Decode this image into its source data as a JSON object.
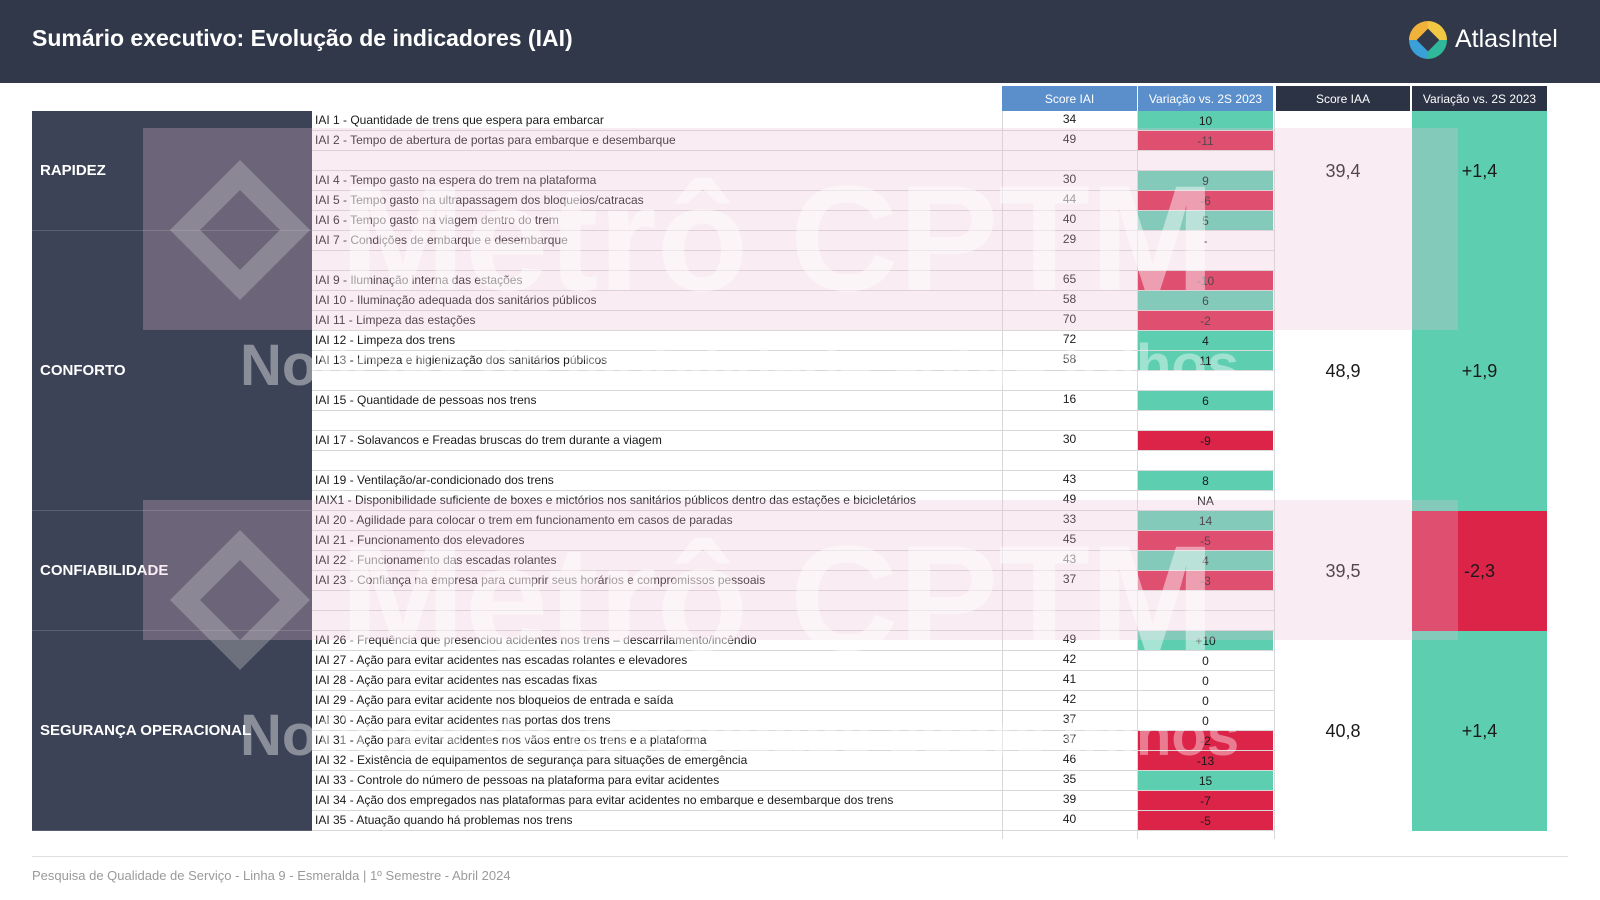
{
  "header": {
    "title": "Sumário executivo: Evolução de indicadores (IAI)",
    "logo_text": "AtlasIntel"
  },
  "columns": {
    "score_iai": "Score IAI",
    "var_iai": "Variação vs. 2S 2023",
    "score_iaa": "Score IAA",
    "var_iaa": "Variação vs. 2S 2023"
  },
  "categories": [
    {
      "name": "RAPIDEZ",
      "score_iaa": "39,4",
      "var_iaa": "+1,4",
      "var_color": "#5dcfb0"
    },
    {
      "name": "CONFORTO",
      "score_iaa": "48,9",
      "var_iaa": "+1,9",
      "var_color": "#5dcfb0"
    },
    {
      "name": "CONFIABILIDADE",
      "score_iaa": "39,5",
      "var_iaa": "-2,3",
      "var_color": "#dc2449"
    },
    {
      "name": "SEGURANÇA OPERACIONAL",
      "score_iaa": "40,8",
      "var_iaa": "+1,4",
      "var_color": "#5dcfb0"
    }
  ],
  "rows": [
    {
      "label": "IAI 1 - Quantidade de trens que espera para embarcar",
      "score": "34",
      "var": "10",
      "tone": "pos"
    },
    {
      "label": "IAI 2 - Tempo de abertura de portas para embarque e desembarque",
      "score": "49",
      "var": "-11",
      "tone": "neg"
    },
    {
      "label": "",
      "score": "",
      "var": "",
      "tone": "none"
    },
    {
      "label": "IAI 4 - Tempo gasto na espera do trem na plataforma",
      "score": "30",
      "var": "9",
      "tone": "pos"
    },
    {
      "label": "IAI 5 - Tempo gasto na ultrapassagem dos bloqueios/catracas",
      "score": "44",
      "var": "-6",
      "tone": "neg"
    },
    {
      "label": "IAI 6 - Tempo gasto na viagem dentro do trem",
      "score": "40",
      "var": "5",
      "tone": "pos"
    },
    {
      "label": "IAI 7 - Condições de embarque e desembarque",
      "score": "29",
      "var": "-",
      "tone": "none"
    },
    {
      "label": "",
      "score": "",
      "var": "",
      "tone": "none"
    },
    {
      "label": "IAI 9 - Iluminação interna das estações",
      "score": "65",
      "var": "-10",
      "tone": "neg"
    },
    {
      "label": "IAI 10 - Iluminação adequada dos sanitários públicos",
      "score": "58",
      "var": "6",
      "tone": "pos"
    },
    {
      "label": "IAI 11 - Limpeza das estações",
      "score": "70",
      "var": "-2",
      "tone": "neg"
    },
    {
      "label": "IAI 12 - Limpeza dos trens",
      "score": "72",
      "var": "4",
      "tone": "pos"
    },
    {
      "label": "IAI 13 - Limpeza e higienização dos sanitários públicos",
      "score": "58",
      "var": "11",
      "tone": "pos"
    },
    {
      "label": "",
      "score": "",
      "var": "",
      "tone": "none"
    },
    {
      "label": "IAI 15 - Quantidade de pessoas nos trens",
      "score": "16",
      "var": "6",
      "tone": "pos"
    },
    {
      "label": "",
      "score": "",
      "var": "",
      "tone": "none"
    },
    {
      "label": "IAI 17 - Solavancos e Freadas bruscas do trem durante a viagem",
      "score": "30",
      "var": "-9",
      "tone": "neg"
    },
    {
      "label": "",
      "score": "",
      "var": "",
      "tone": "none"
    },
    {
      "label": "IAI 19 - Ventilação/ar-condicionado dos trens",
      "score": "43",
      "var": "8",
      "tone": "pos"
    },
    {
      "label": "IAIX1 - Disponibilidade suficiente de boxes e mictórios nos sanitários públicos dentro das estações e bicicletários",
      "score": "49",
      "var": "NA",
      "tone": "none"
    },
    {
      "label": "IAI 20 - Agilidade para colocar o trem em funcionamento em casos de paradas",
      "score": "33",
      "var": "14",
      "tone": "pos"
    },
    {
      "label": "IAI 21 - Funcionamento dos elevadores",
      "score": "45",
      "var": "-5",
      "tone": "neg"
    },
    {
      "label": "IAI 22 - Funcionamento das escadas rolantes",
      "score": "43",
      "var": "4",
      "tone": "pos"
    },
    {
      "label": "IAI 23 - Confiança na empresa para cumprir seus horários e compromissos pessoais",
      "score": "37",
      "var": "-3",
      "tone": "neg"
    },
    {
      "label": "",
      "score": "",
      "var": "",
      "tone": "none"
    },
    {
      "label": "",
      "score": "",
      "var": "",
      "tone": "none"
    },
    {
      "label": "IAI 26 - Frequência que presenciou acidentes nos trens – descarrilamento/incêndio",
      "score": "49",
      "var": "+10",
      "tone": "pos"
    },
    {
      "label": "IAI 27 - Ação para evitar acidentes nas escadas rolantes e elevadores",
      "score": "42",
      "var": "0",
      "tone": "none"
    },
    {
      "label": "IAI 28 - Ação para evitar acidentes nas escadas fixas",
      "score": "41",
      "var": "0",
      "tone": "none"
    },
    {
      "label": "IAI 29 - Ação para evitar acidente nos bloqueios de entrada e saída",
      "score": "42",
      "var": "0",
      "tone": "none"
    },
    {
      "label": "IAI 30 - Ação para evitar acidentes nas portas dos trens",
      "score": "37",
      "var": "0",
      "tone": "none"
    },
    {
      "label": "IAI 31 - Ação para evitar acidentes nos vãos entre os trens e a plataforma",
      "score": "37",
      "var": "-2",
      "tone": "neg"
    },
    {
      "label": "IAI 32 - Existência de equipamentos de segurança para situações de emergência",
      "score": "46",
      "var": "-13",
      "tone": "neg"
    },
    {
      "label": "IAI 33 - Controle do número de pessoas na plataforma para evitar acidentes",
      "score": "35",
      "var": "15",
      "tone": "pos"
    },
    {
      "label": "IAI 34 - Ação dos empregados nas plataformas para evitar acidentes no embarque e desembarque dos trens",
      "score": "39",
      "var": "-7",
      "tone": "neg"
    },
    {
      "label": "IAI 35 - Atuação quando há problemas nos trens",
      "score": "40",
      "var": "-5",
      "tone": "neg"
    }
  ],
  "watermark": {
    "title": "Metrô CPTM",
    "subtitle": "Notícias de mobilidade sobre trilhos"
  },
  "colors": {
    "positive": "#5dcfb0",
    "negative": "#dc2449",
    "header_bg": "#303849"
  },
  "footer": "Pesquisa de Qualidade de Serviço - Linha 9 - Esmeralda | 1º Semestre - Abril 2024"
}
